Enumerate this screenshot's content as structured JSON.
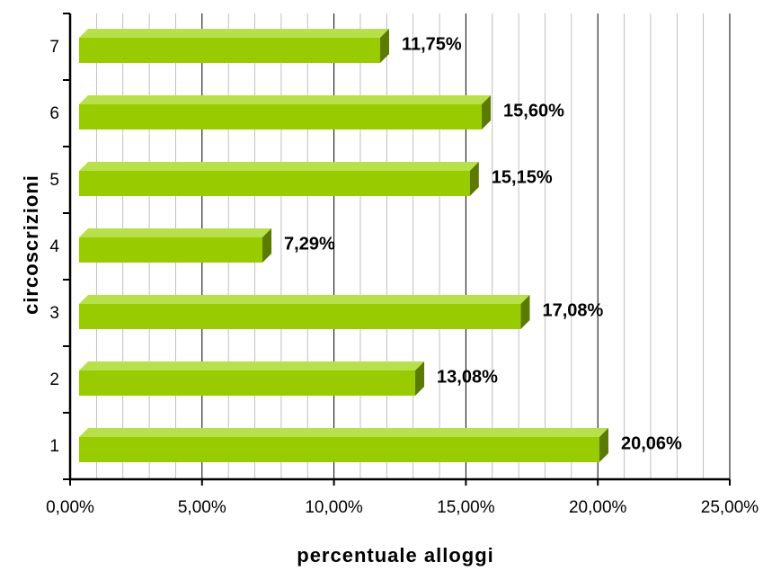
{
  "chart_data": {
    "type": "bar",
    "orientation": "horizontal",
    "categories": [
      "1",
      "2",
      "3",
      "4",
      "5",
      "6",
      "7"
    ],
    "values": [
      20.06,
      13.08,
      17.08,
      7.29,
      15.15,
      15.6,
      11.75
    ],
    "data_labels": [
      "20,06%",
      "13,08%",
      "17,08%",
      "7,29%",
      "15,15%",
      "15,60%",
      "11,75%"
    ],
    "xlabel": "percentuale alloggi",
    "ylabel": "circoscrizioni",
    "xlim": [
      0,
      25
    ],
    "x_ticks": [
      0,
      5,
      10,
      15,
      20,
      25
    ],
    "x_tick_labels": [
      "0,00%",
      "5,00%",
      "10,00%",
      "15,00%",
      "20,00%",
      "25,00%"
    ],
    "grid": "vertical major and minor",
    "bar_color": "#99cc00",
    "bar_side_color": "#5a7a00",
    "bar_top_color": "#b8e04a"
  }
}
